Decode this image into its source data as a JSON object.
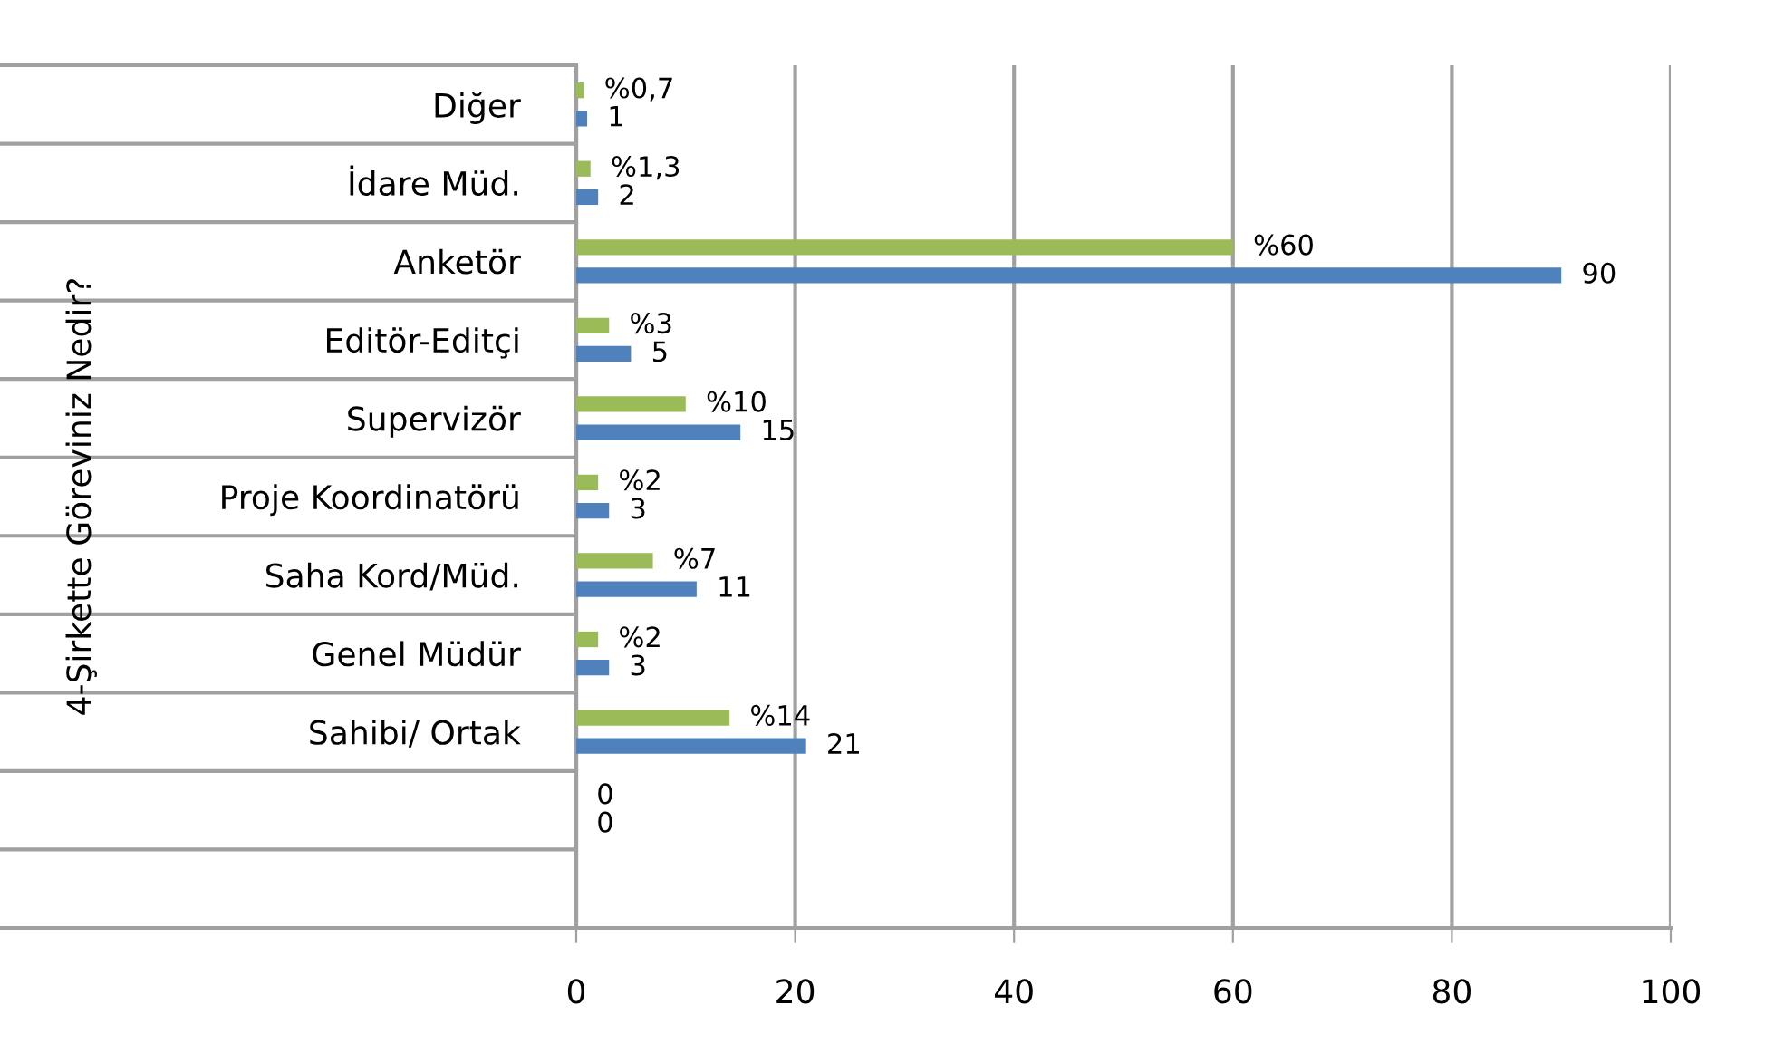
{
  "chart_data": {
    "type": "bar",
    "orientation": "horizontal",
    "ylabel": "4-Şirkette Göreviniz Nedir?",
    "categories": [
      "Diğer",
      "İdare Müd.",
      "Anketör",
      "Editör-Editçi",
      "Supervizör",
      "Proje Koordinatörü",
      "Saha Kord/Müd.",
      "Genel Müdür",
      "Sahibi/ Ortak",
      null,
      null
    ],
    "series": [
      {
        "color": "#9bbb59",
        "values": [
          0.7,
          1.3,
          60,
          3,
          10,
          2,
          7,
          2,
          14,
          0,
          null
        ],
        "value_labels": [
          "%0,7",
          "%1,3",
          "%60",
          "%3",
          "%10",
          "%2",
          "%7",
          "%2",
          "%14",
          "0",
          null
        ]
      },
      {
        "color": "#4f81bd",
        "values": [
          1,
          2,
          90,
          5,
          15,
          3,
          11,
          3,
          21,
          0,
          null
        ],
        "value_labels": [
          "1",
          "2",
          "90",
          "5",
          "15",
          "3",
          "11",
          "3",
          "21",
          "0",
          null
        ]
      }
    ],
    "xlim": [
      0,
      100
    ],
    "xticks": [
      0,
      20,
      40,
      60,
      80,
      100
    ],
    "grid": "x",
    "legend": false
  }
}
